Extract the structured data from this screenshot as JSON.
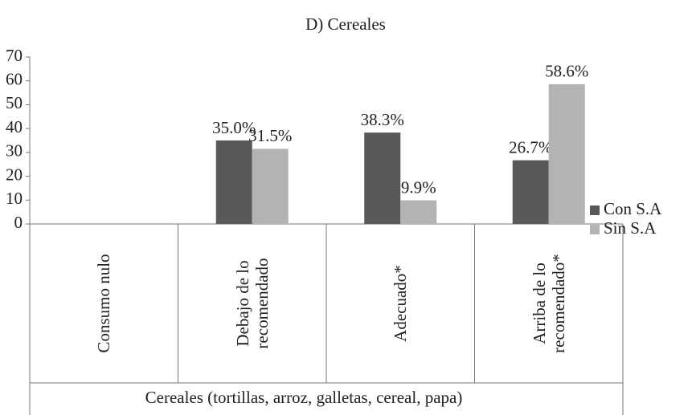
{
  "chart_data": {
    "type": "bar",
    "title": "D)  Cereales",
    "x_label": "Cereales (tortillas, arroz, galletas, cereal, papa)",
    "categories": [
      "Consumo nulo",
      "Debajo de lo recomendado",
      "Adecuado*",
      "Arriba de lo recomendado*"
    ],
    "series": [
      {
        "name": "Con S.A",
        "color": "#595959",
        "values": [
          null,
          35.0,
          38.3,
          26.7
        ],
        "value_labels": [
          null,
          "35.0%",
          "38.3%",
          "26.7%"
        ]
      },
      {
        "name": "Sin S.A",
        "color": "#b3b3b3",
        "values": [
          null,
          31.5,
          9.9,
          58.6
        ],
        "value_labels": [
          null,
          "31.5%",
          "9.9%",
          "58.6%"
        ]
      }
    ],
    "ylim": [
      0,
      70
    ],
    "yticks": [
      0,
      10,
      20,
      30,
      40,
      50,
      60,
      70
    ],
    "grid": false,
    "legend": "right"
  }
}
